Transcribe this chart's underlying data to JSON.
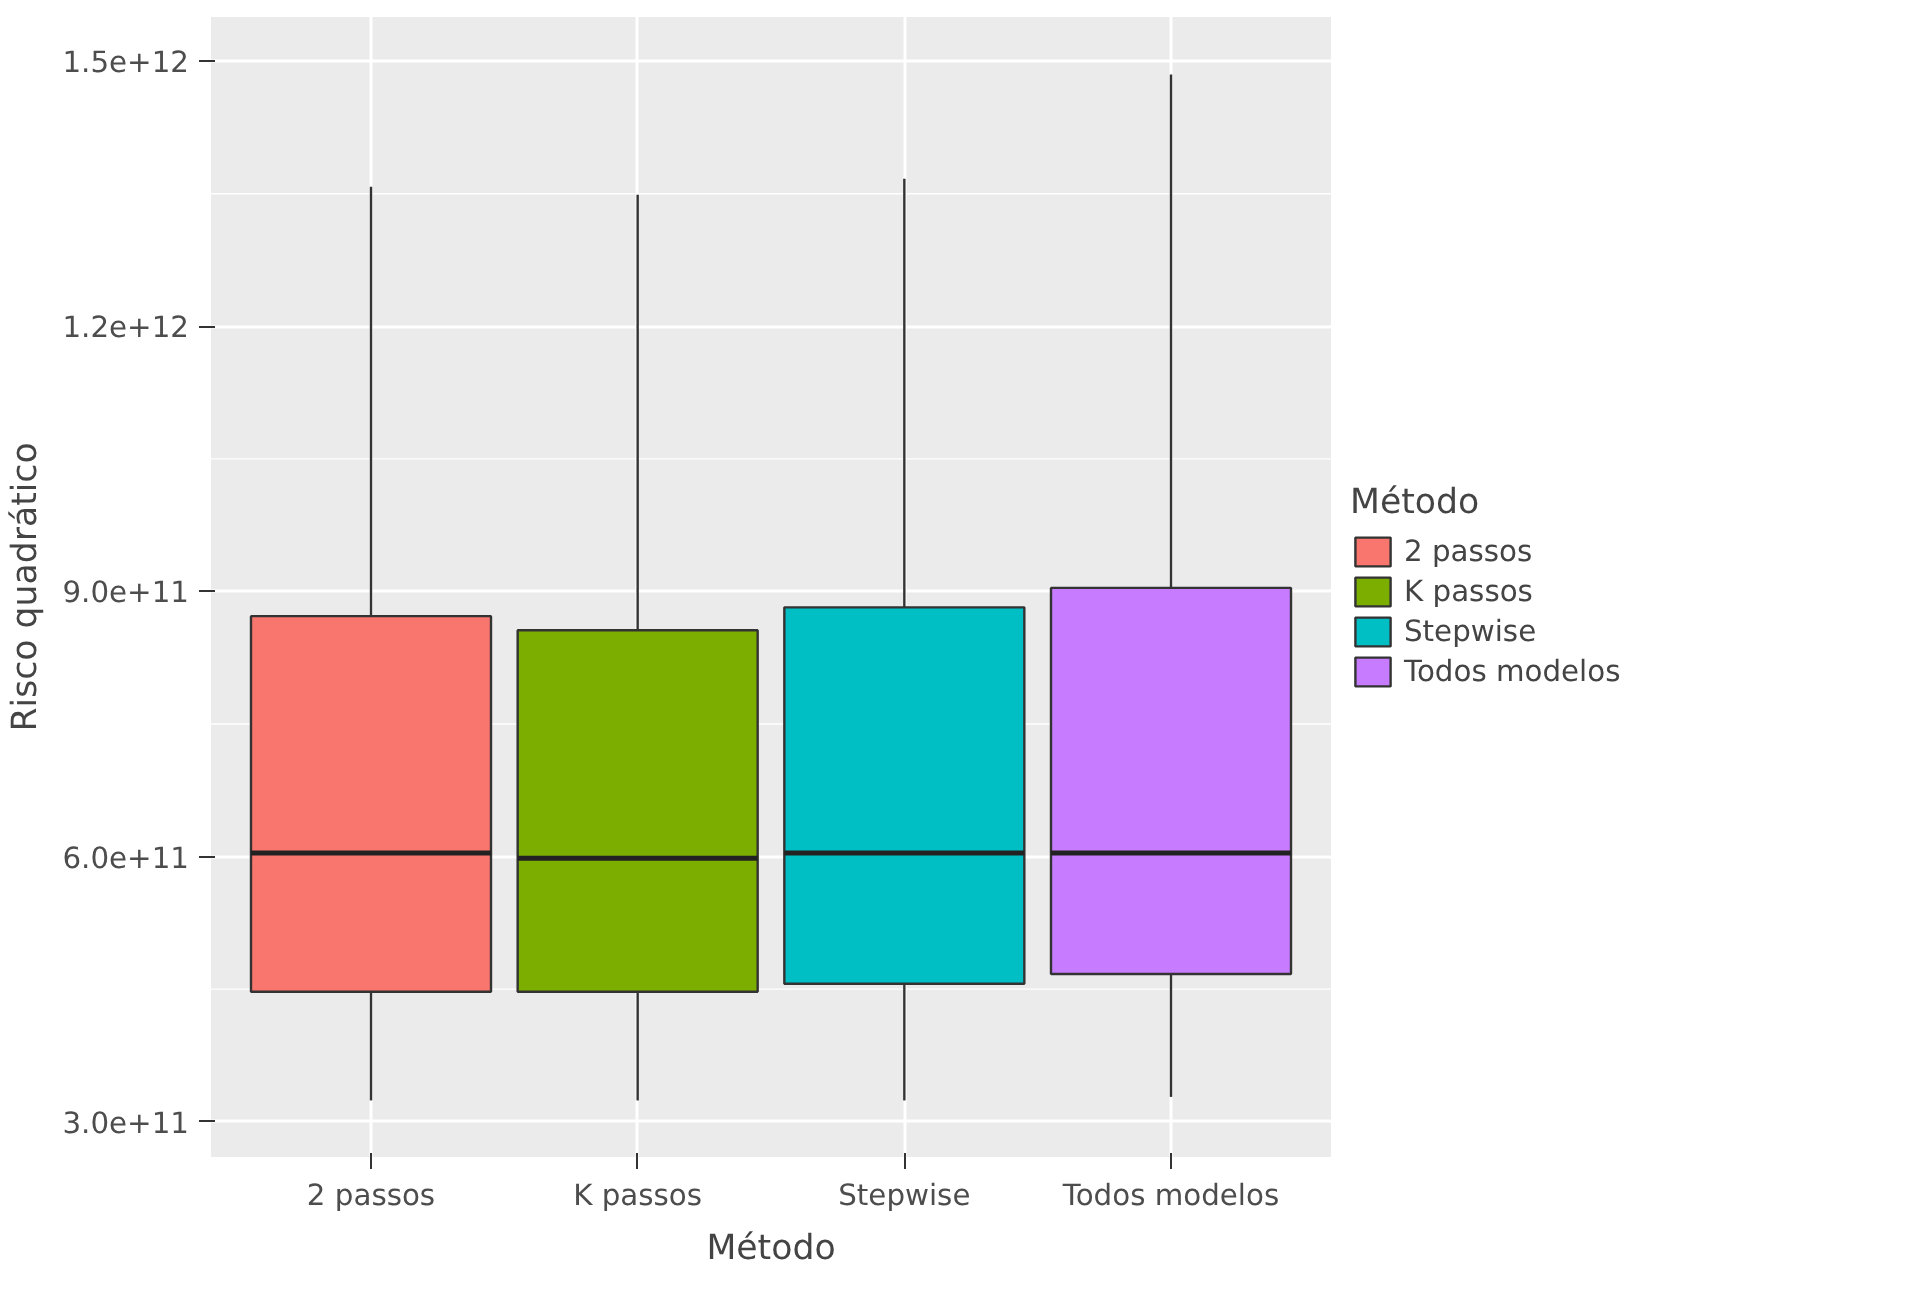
{
  "chart_data": {
    "type": "box",
    "xlabel": "Método",
    "ylabel": "Risco quadrático",
    "legend_title": "Método",
    "categories": [
      "2 passos",
      "K passos",
      "Stepwise",
      "Todos modelos"
    ],
    "series": [
      {
        "name": "2 passos",
        "color": "#f8766d",
        "x": [
          "2 passos"
        ],
        "boxes": [
          {
            "low": 324000000000.0,
            "q1": 447000000000.0,
            "median": 604000000000.0,
            "q3": 872000000000.0,
            "high": 1358000000000.0
          }
        ]
      },
      {
        "name": "K passos",
        "color": "#7cae00",
        "x": [
          "K passos"
        ],
        "boxes": [
          {
            "low": 324000000000.0,
            "q1": 447000000000.0,
            "median": 598000000000.0,
            "q3": 856000000000.0,
            "high": 1349000000000.0
          }
        ]
      },
      {
        "name": "Stepwise",
        "color": "#00bfc4",
        "x": [
          "Stepwise"
        ],
        "boxes": [
          {
            "low": 324000000000.0,
            "q1": 456000000000.0,
            "median": 604000000000.0,
            "q3": 882000000000.0,
            "high": 1367000000000.0
          }
        ]
      },
      {
        "name": "Todos modelos",
        "color": "#c77cff",
        "x": [
          "Todos modelos"
        ],
        "boxes": [
          {
            "low": 328000000000.0,
            "q1": 467000000000.0,
            "median": 604000000000.0,
            "q3": 904000000000.0,
            "high": 1485000000000.0
          }
        ]
      }
    ],
    "ylim": [
      260000000000.0,
      1550000000000.0
    ],
    "yticks": [
      {
        "value": 300000000000.0,
        "label": "3.0e+11"
      },
      {
        "value": 600000000000.0,
        "label": "6.0e+11"
      },
      {
        "value": 900000000000.0,
        "label": "9.0e+11"
      },
      {
        "value": 1200000000000.0,
        "label": "1.2e+12"
      },
      {
        "value": 1500000000000.0,
        "label": "1.5e+12"
      }
    ],
    "grid": true,
    "legend": "right"
  }
}
